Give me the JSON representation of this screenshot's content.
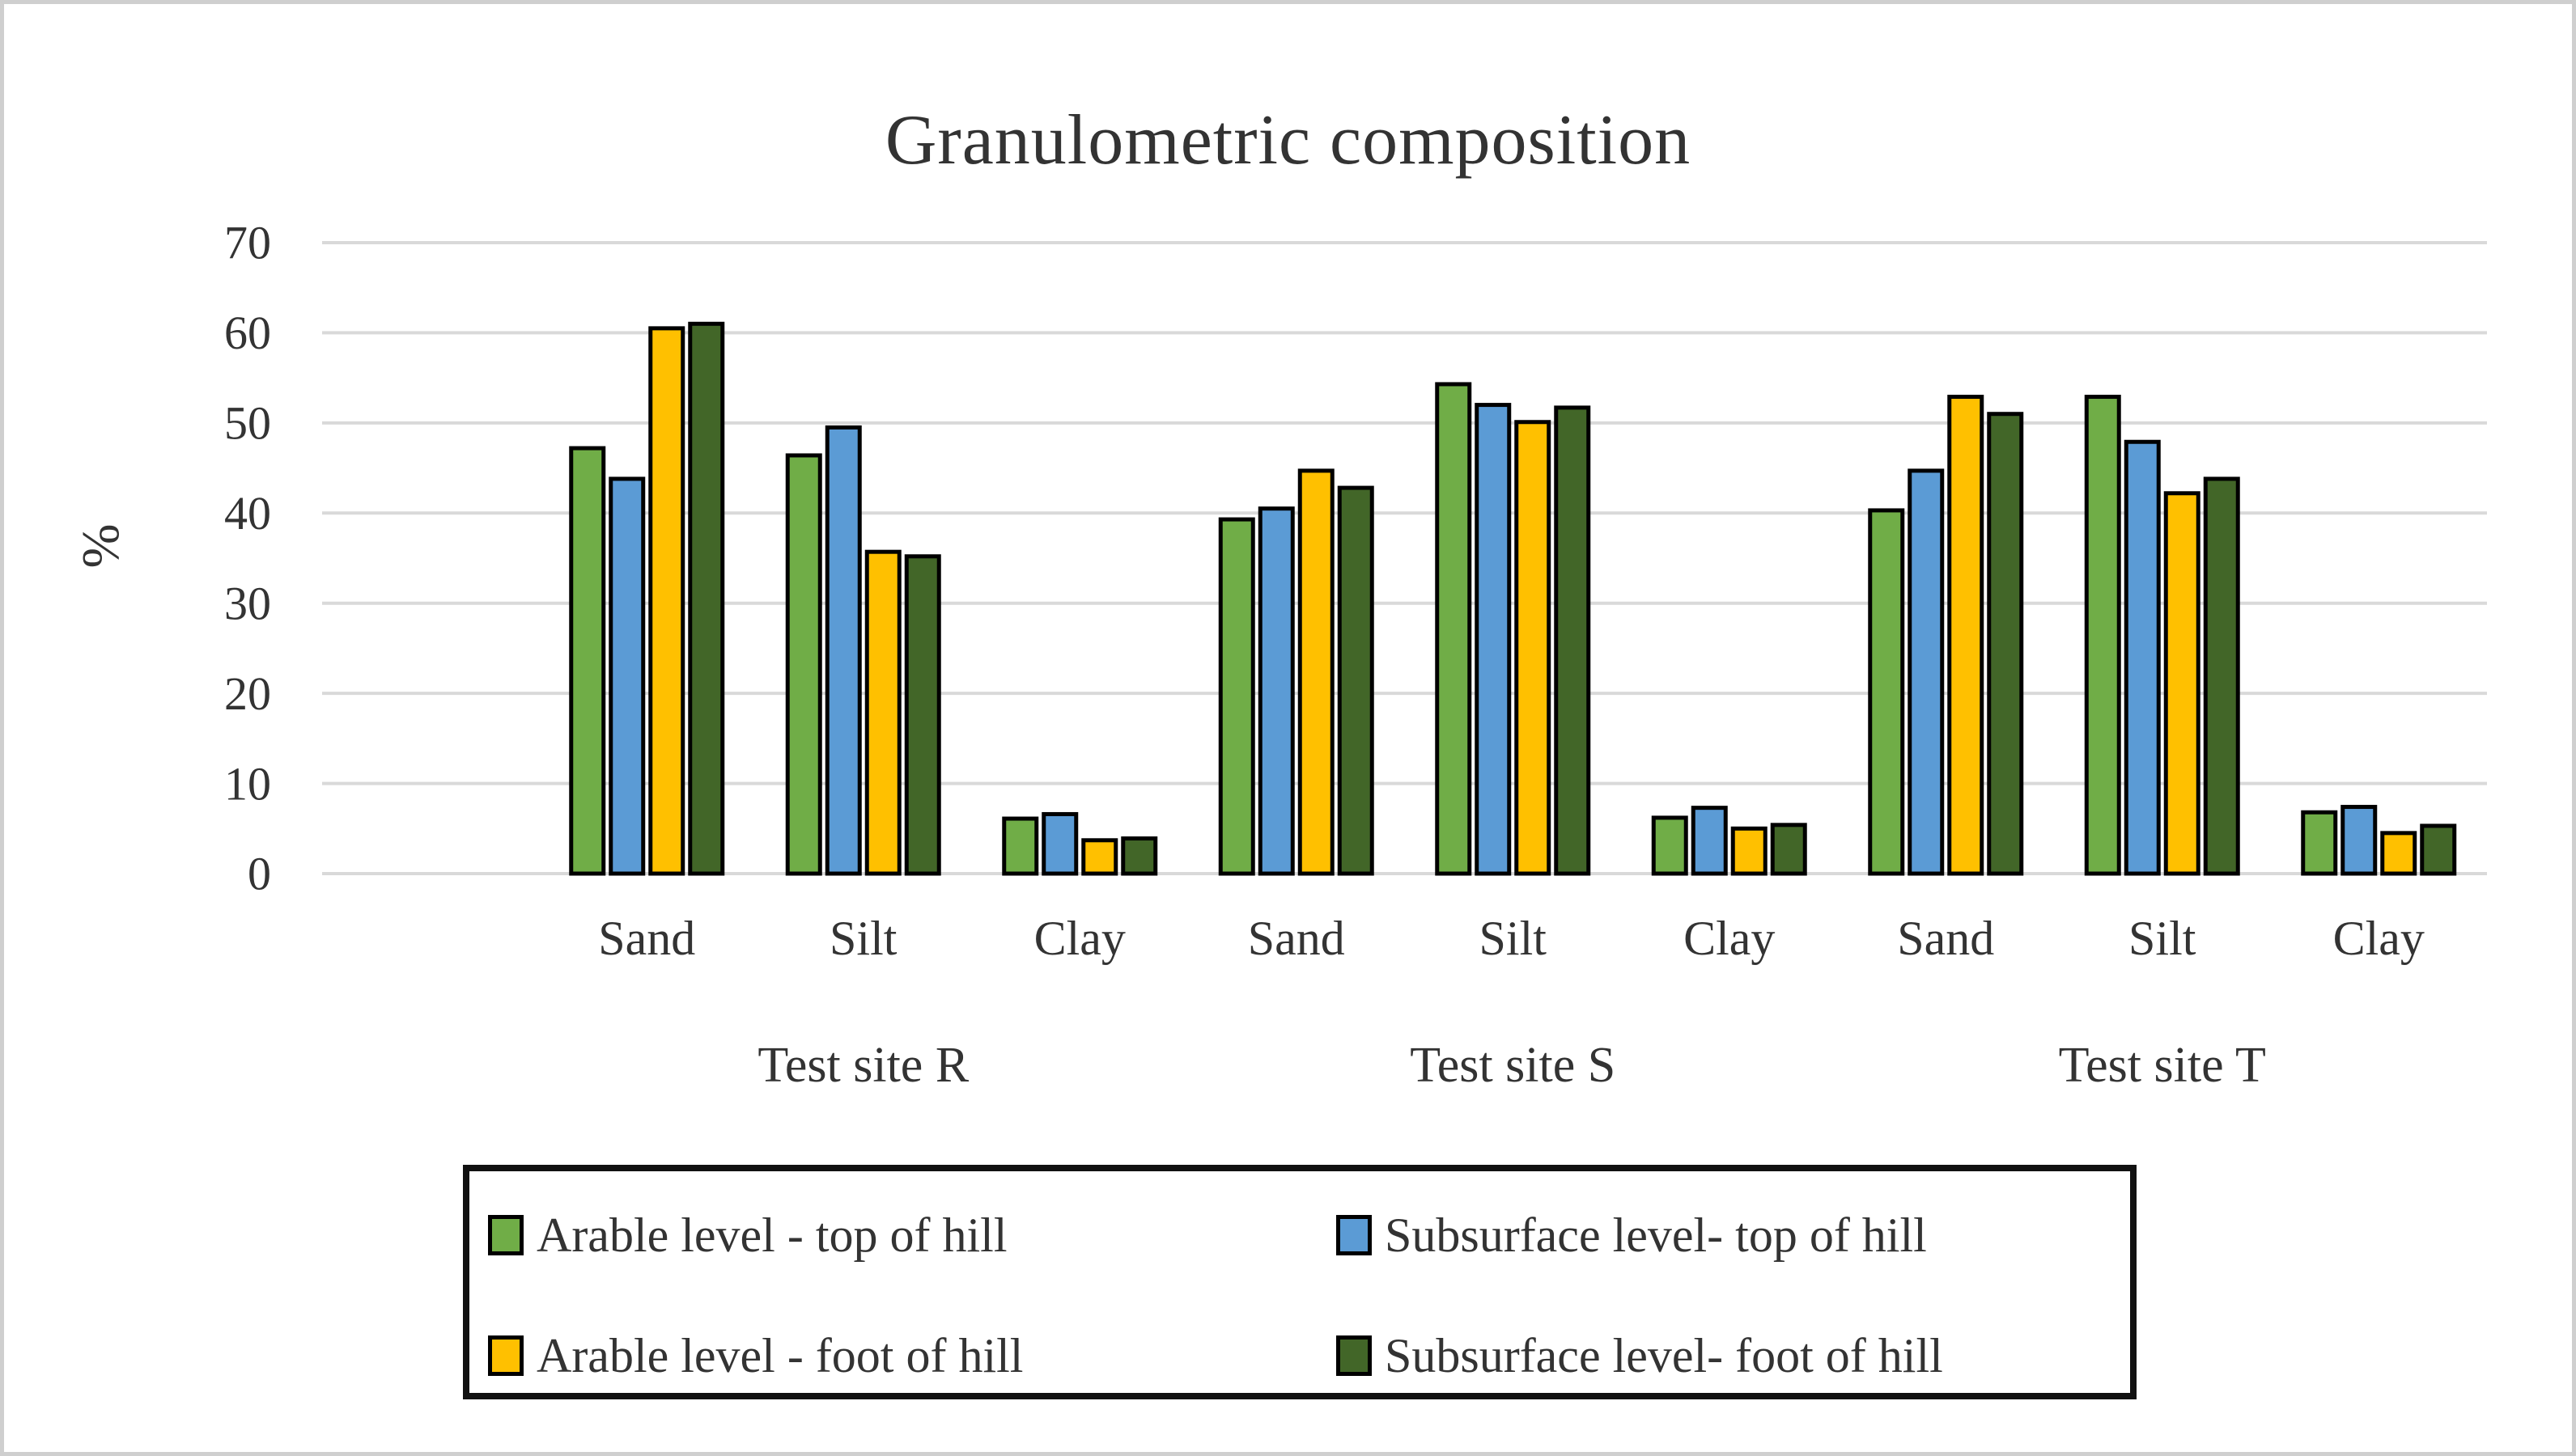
{
  "figure": {
    "border_color": "#cfcfcf",
    "background": "#ffffff"
  },
  "chart_data": {
    "type": "bar",
    "title": "Granulometric composition",
    "ylabel": "%",
    "xlabel": "",
    "ylim": [
      0,
      70
    ],
    "ytick_step": 10,
    "yticks": [
      0,
      10,
      20,
      30,
      40,
      50,
      60,
      70
    ],
    "grid": true,
    "gridline_color": "#d9d9d9",
    "bar_border_color": "#000000",
    "text_color": "#333333",
    "legend_position": "bottom-box",
    "group_labels": [
      "Test site R",
      "Test site S",
      "Test site T"
    ],
    "categories": [
      "Sand",
      "Silt",
      "Clay",
      "Sand",
      "Silt",
      "Clay",
      "Sand",
      "Silt",
      "Clay"
    ],
    "series": [
      {
        "name": "Arable level - top of hill",
        "color": "#70AD47",
        "values": [
          47.2,
          46.4,
          6.1,
          39.3,
          54.3,
          6.2,
          40.3,
          52.9,
          6.8
        ]
      },
      {
        "name": "Subsurface level- top of hill",
        "color": "#5B9BD5",
        "values": [
          43.8,
          49.5,
          6.6,
          40.5,
          52.0,
          7.3,
          44.7,
          47.9,
          7.4
        ]
      },
      {
        "name": "Arable level - foot of hill",
        "color": "#FFC000",
        "values": [
          60.5,
          35.7,
          3.7,
          44.7,
          50.1,
          5.0,
          52.9,
          42.2,
          4.5
        ]
      },
      {
        "name": "Subsurface level- foot of hill",
        "color": "#426628",
        "values": [
          61.0,
          35.2,
          3.9,
          42.8,
          51.7,
          5.4,
          51.0,
          43.8,
          5.3
        ]
      }
    ]
  }
}
